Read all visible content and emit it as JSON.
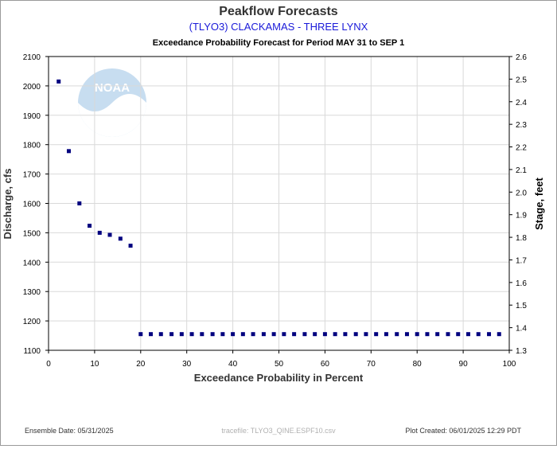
{
  "chart_data": {
    "type": "scatter",
    "title": "Peakflow Forecasts",
    "subtitle": "(TLYO3) CLACKAMAS - THREE LYNX",
    "subtitle2": "Exceedance Probability Forecast for Period MAY 31 to SEP 1",
    "xlabel": "Exceedance Probability in Percent",
    "ylabel": "Discharge, cfs",
    "y2label": "Stage, feet",
    "xlim": [
      0,
      100
    ],
    "ylim": [
      1100,
      2100
    ],
    "y2lim": [
      1.3,
      2.6
    ],
    "xticks": [
      "0",
      "10",
      "20",
      "30",
      "40",
      "50",
      "60",
      "70",
      "80",
      "90",
      "100"
    ],
    "yticks": [
      "1100",
      "1200",
      "1300",
      "1400",
      "1500",
      "1600",
      "1700",
      "1800",
      "1900",
      "2000",
      "2100"
    ],
    "y2ticks": [
      "1.3",
      "1.4",
      "1.5",
      "1.6",
      "1.7",
      "1.8",
      "1.9",
      "2.0",
      "2.1",
      "2.2",
      "2.3",
      "2.4",
      "2.5",
      "2.6"
    ],
    "grid": true,
    "marker_color": "#00007f",
    "points": [
      {
        "x": 2.2,
        "y": 2015
      },
      {
        "x": 4.4,
        "y": 1778
      },
      {
        "x": 6.7,
        "y": 1600
      },
      {
        "x": 8.9,
        "y": 1524
      },
      {
        "x": 11.1,
        "y": 1500
      },
      {
        "x": 13.3,
        "y": 1493
      },
      {
        "x": 15.6,
        "y": 1480
      },
      {
        "x": 17.8,
        "y": 1456
      },
      {
        "x": 20.0,
        "y": 1155
      },
      {
        "x": 22.2,
        "y": 1155
      },
      {
        "x": 24.4,
        "y": 1155
      },
      {
        "x": 26.7,
        "y": 1155
      },
      {
        "x": 28.9,
        "y": 1155
      },
      {
        "x": 31.1,
        "y": 1155
      },
      {
        "x": 33.3,
        "y": 1155
      },
      {
        "x": 35.6,
        "y": 1155
      },
      {
        "x": 37.8,
        "y": 1155
      },
      {
        "x": 40.0,
        "y": 1155
      },
      {
        "x": 42.2,
        "y": 1155
      },
      {
        "x": 44.4,
        "y": 1155
      },
      {
        "x": 46.7,
        "y": 1155
      },
      {
        "x": 48.9,
        "y": 1155
      },
      {
        "x": 51.1,
        "y": 1155
      },
      {
        "x": 53.3,
        "y": 1155
      },
      {
        "x": 55.6,
        "y": 1155
      },
      {
        "x": 57.8,
        "y": 1155
      },
      {
        "x": 60.0,
        "y": 1155
      },
      {
        "x": 62.2,
        "y": 1155
      },
      {
        "x": 64.4,
        "y": 1155
      },
      {
        "x": 66.7,
        "y": 1155
      },
      {
        "x": 68.9,
        "y": 1155
      },
      {
        "x": 71.1,
        "y": 1155
      },
      {
        "x": 73.3,
        "y": 1155
      },
      {
        "x": 75.6,
        "y": 1155
      },
      {
        "x": 77.8,
        "y": 1155
      },
      {
        "x": 80.0,
        "y": 1155
      },
      {
        "x": 82.2,
        "y": 1155
      },
      {
        "x": 84.4,
        "y": 1155
      },
      {
        "x": 86.7,
        "y": 1155
      },
      {
        "x": 88.9,
        "y": 1155
      },
      {
        "x": 91.1,
        "y": 1155
      },
      {
        "x": 93.3,
        "y": 1155
      },
      {
        "x": 95.6,
        "y": 1155
      },
      {
        "x": 97.8,
        "y": 1155
      }
    ]
  },
  "logo": {
    "text": "NOAA",
    "color": "#4a90d0"
  },
  "footer": {
    "ensemble_date": "Ensemble Date: 05/31/2025",
    "tracefile": "tracefile: TLYO3_QINE.ESPF10.csv",
    "plot_created": "Plot Created: 06/01/2025 12:29 PDT"
  }
}
